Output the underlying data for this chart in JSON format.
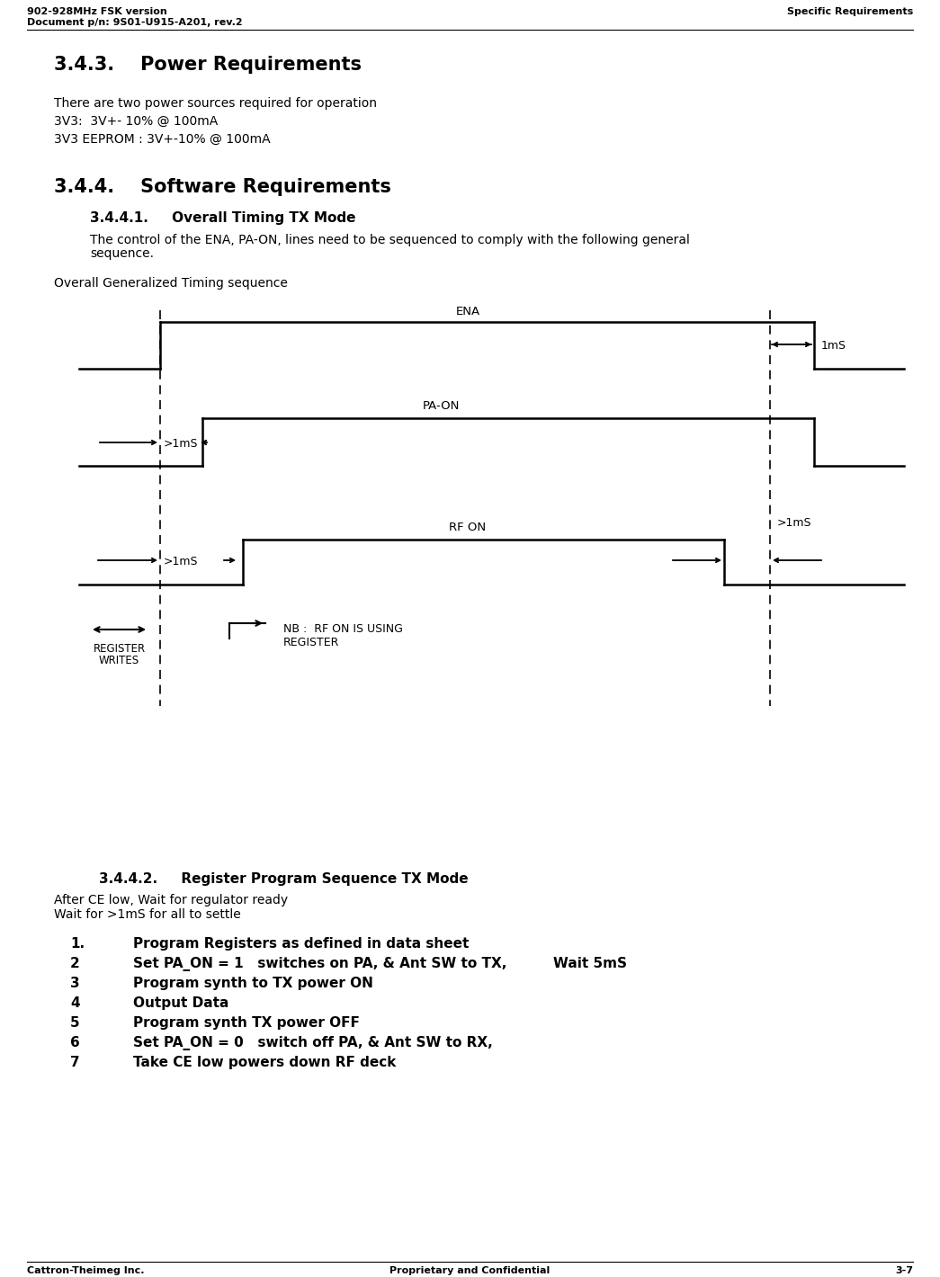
{
  "header_left_line1": "902-928MHz FSK version",
  "header_left_line2": "Document p/n: 9S01-U915-A201, rev.2",
  "header_right": "Specific Requirements",
  "footer_left": "Cattron-Theimeg Inc.",
  "footer_center": "Proprietary and Confidential",
  "footer_right": "3-7",
  "section_343_title": "3.4.3.    Power Requirements",
  "section_343_body": [
    "There are two power sources required for operation",
    "3V3:  3V+- 10% @ 100mA",
    "3V3 EEPROM : 3V+-10% @ 100mA"
  ],
  "section_344_title": "3.4.4.    Software Requirements",
  "section_3441_title": "3.4.4.1.     Overall Timing TX Mode",
  "section_3441_body_line1": "The control of the ENA, PA-ON, lines need to be sequenced to comply with the following general",
  "section_3441_body_line2": "sequence.",
  "timing_label": "Overall Generalized Timing sequence",
  "section_3442_title": "3.4.4.2.     Register Program Sequence TX Mode",
  "section_3442_body": [
    "After CE low, Wait for regulator ready",
    "Wait for >1mS for all to settle"
  ],
  "numbered_list": [
    {
      "num": "1.",
      "text": "Program Registers as defined in data sheet",
      "extra": ""
    },
    {
      "num": "2",
      "text": "Set PA_ON = 1   switches on PA, & Ant SW to TX,",
      "extra": "Wait 5mS"
    },
    {
      "num": "3",
      "text": "Program synth to TX power ON",
      "extra": ""
    },
    {
      "num": "4",
      "text": "Output Data",
      "extra": ""
    },
    {
      "num": "5",
      "text": "Program synth TX power OFF",
      "extra": ""
    },
    {
      "num": "6",
      "text": "Set PA_ON = 0   switch off PA, & Ant SW to RX,",
      "extra": ""
    },
    {
      "num": "7",
      "text": "Take CE low powers down RF deck",
      "extra": ""
    }
  ],
  "bg_color": "#ffffff",
  "text_color": "#000000"
}
